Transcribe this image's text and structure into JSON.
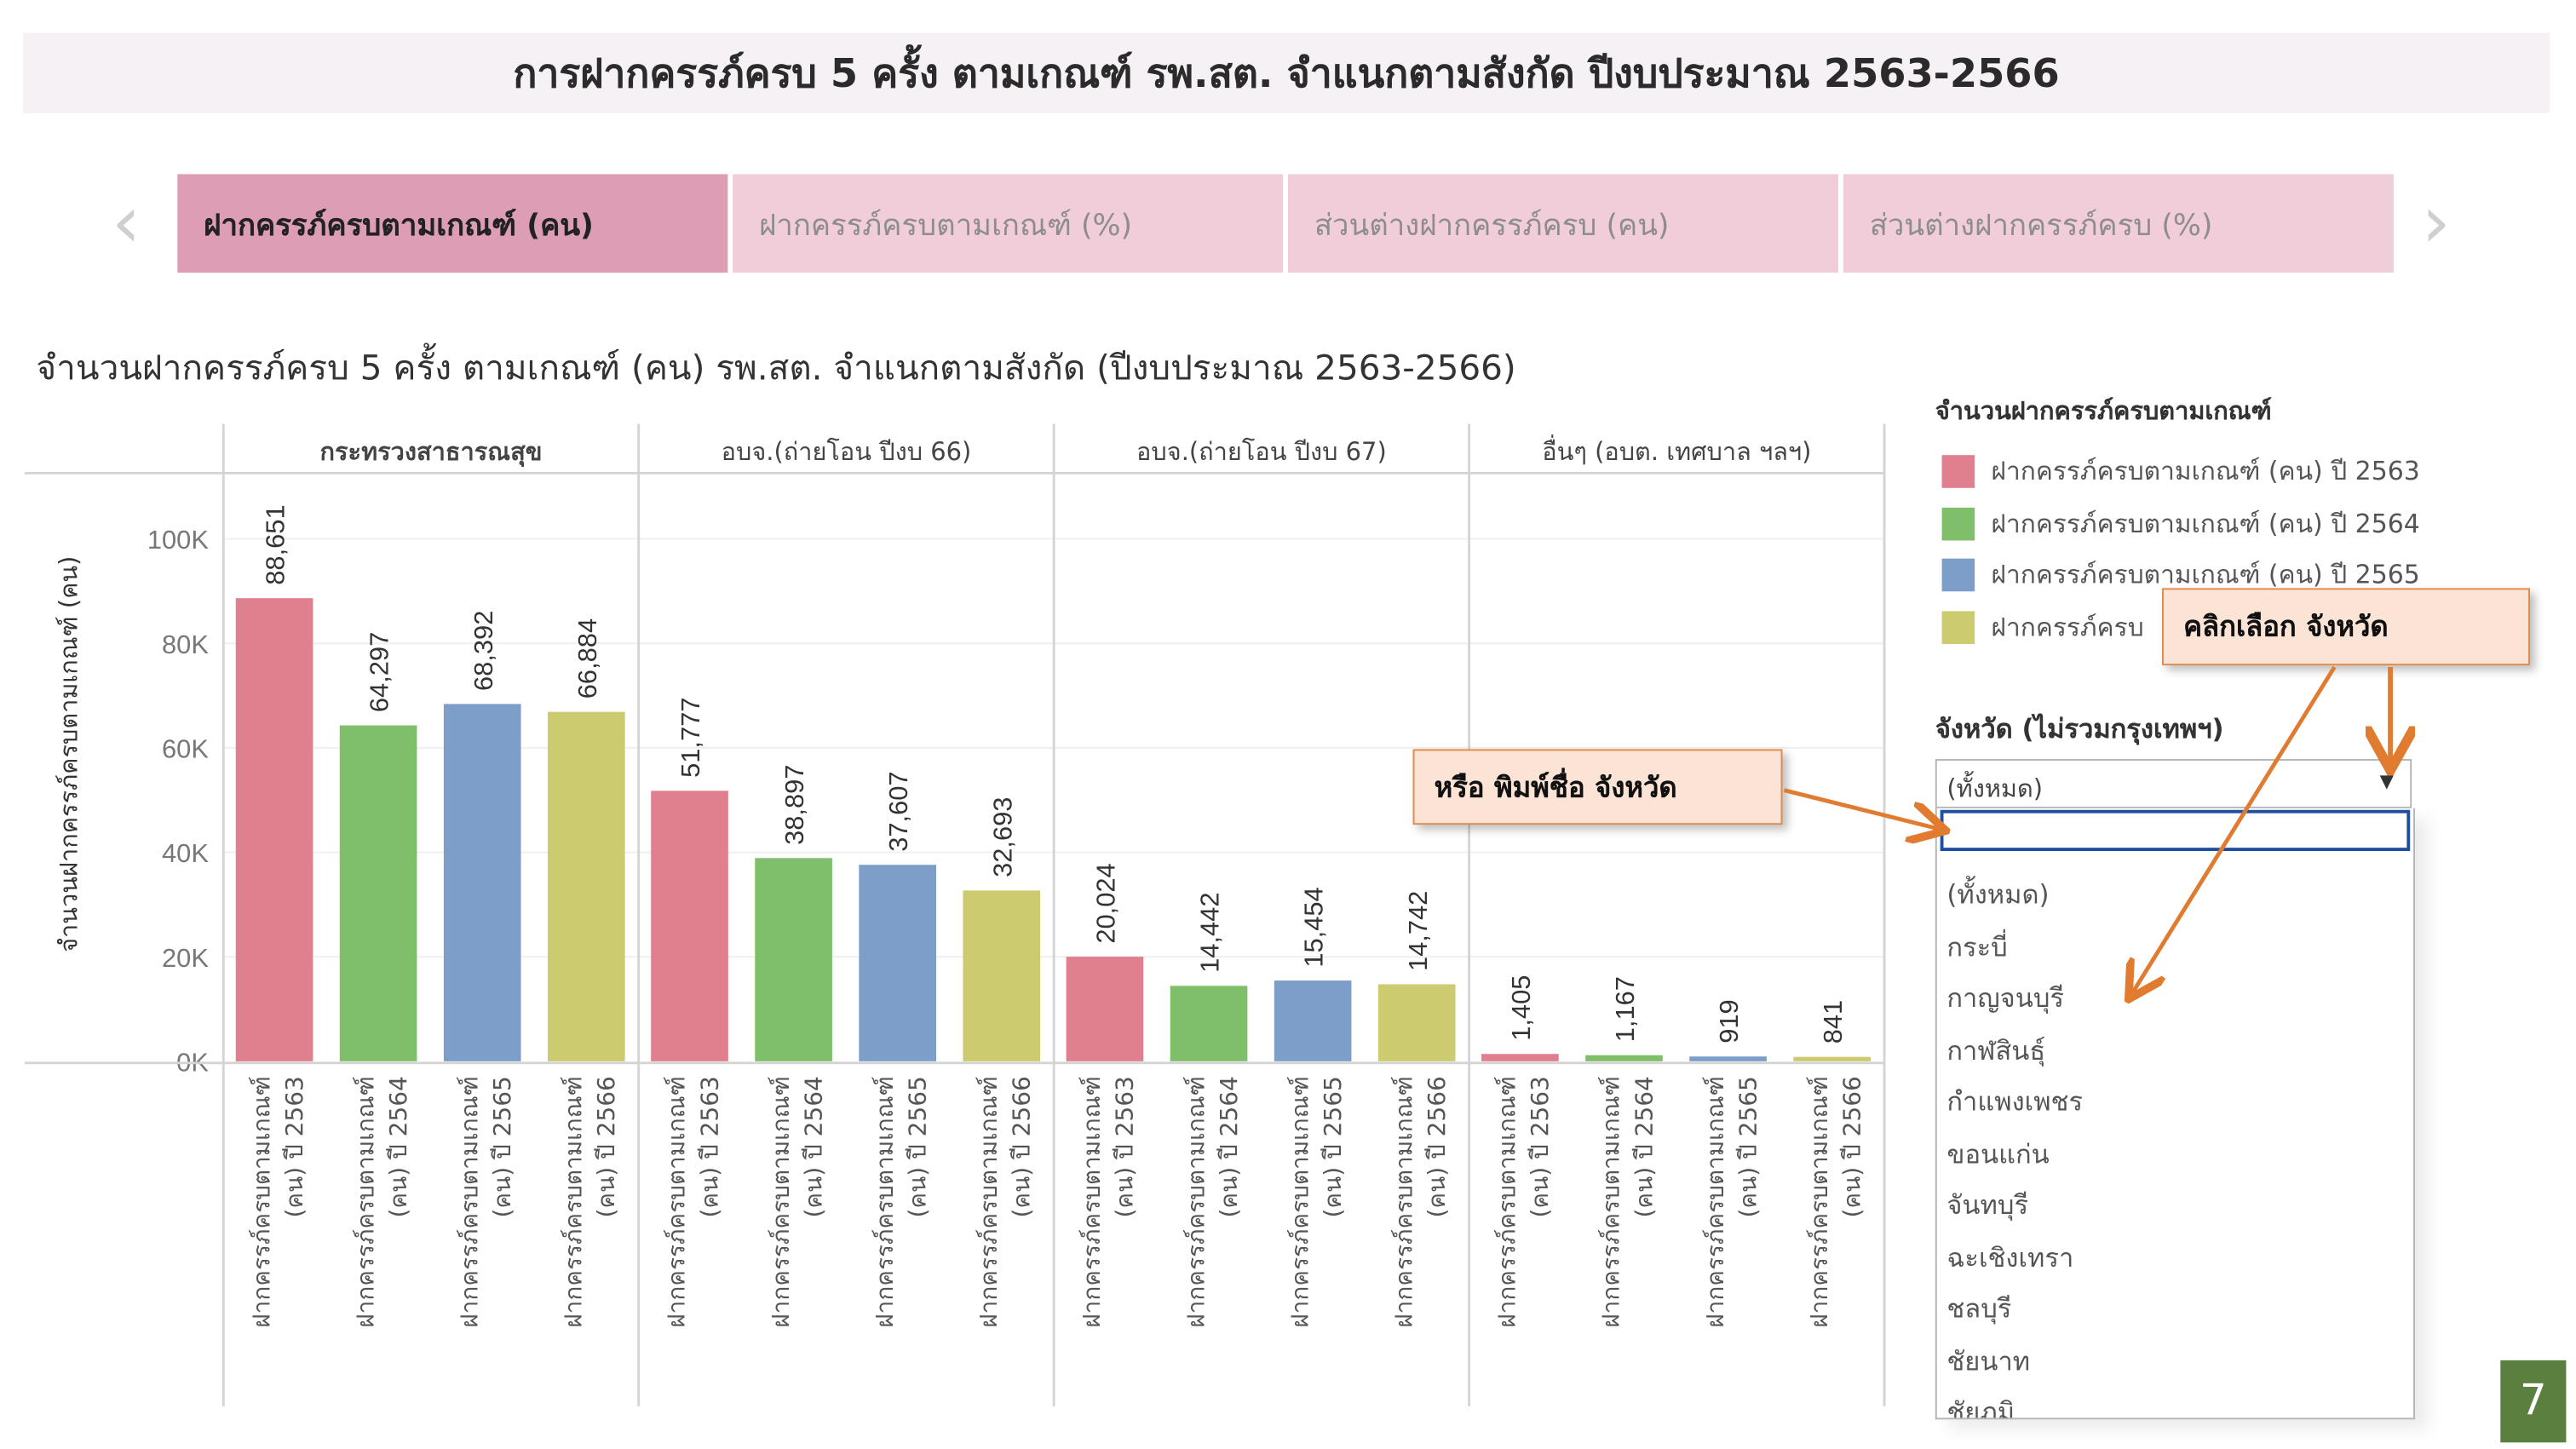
{
  "header": {
    "title": "การฝากครรภ์ครบ 5 ครั้ง ตามเกณฑ์ รพ.สต. จำแนกตามสังกัด ปีงบประมาณ 2563-2566"
  },
  "tabs": [
    {
      "label": "ฝากครรภ์ครบตามเกณฑ์ (คน)",
      "active": true
    },
    {
      "label": "ฝากครรภ์ครบตามเกณฑ์ (%)",
      "active": false
    },
    {
      "label": "ส่วนต่างฝากครรภ์ครบ (คน)",
      "active": false
    },
    {
      "label": "ส่วนต่างฝากครรภ์ครบ (%)",
      "active": false
    }
  ],
  "nav": {
    "prev": "‹",
    "next": "›"
  },
  "subtitle": "จำนวนฝากครรภ์ครบ 5 ครั้ง ตามเกณฑ์ (คน) รพ.สต. จำแนกตามสังกัด (ปีงบประมาณ 2563-2566)",
  "chart_data": {
    "type": "bar",
    "title": "จำนวนฝากครรภ์ครบ 5 ครั้ง ตามเกณฑ์ (คน) รพ.สต. จำแนกตามสังกัด (ปีงบประมาณ 2563-2566)",
    "ylabel": "จำนวนฝากครรภ์ครบตามเกณฑ์ (คน)",
    "ylim": [
      0,
      110000
    ],
    "yticks": [
      0,
      20000,
      40000,
      60000,
      80000,
      100000
    ],
    "ytick_labels": [
      "0K",
      "20K",
      "40K",
      "60K",
      "80K",
      "100K"
    ],
    "grid": true,
    "panels": [
      "กระทรวงสาธารณสุข",
      "อบจ.(ถ่ายโอน ปีงบ 66)",
      "อบจ.(ถ่ายโอน ปีงบ 67)",
      "อื่นๆ (อบต. เทศบาล ฯลฯ)"
    ],
    "category_line1": "ฝากครรภ์ครบตามเกณฑ์",
    "categories": [
      "(คน) ปี 2563",
      "(คน) ปี 2564",
      "(คน) ปี 2565",
      "(คน) ปี 2566"
    ],
    "series": [
      {
        "name": "ฝากครรภ์ครบตามเกณฑ์ (คน) ปี 2563",
        "color": "#e07f8d",
        "values": [
          88651,
          51777,
          20024,
          1405
        ]
      },
      {
        "name": "ฝากครรภ์ครบตามเกณฑ์ (คน) ปี 2564",
        "color": "#80bf6a",
        "values": [
          64297,
          38897,
          14442,
          1167
        ]
      },
      {
        "name": "ฝากครรภ์ครบตามเกณฑ์ (คน) ปี 2565",
        "color": "#7c9ec9",
        "values": [
          68392,
          37607,
          15454,
          919
        ]
      },
      {
        "name": "ฝากครรภ์ครบตามเกณฑ์ (คน) ปี 2566",
        "color": "#cdcb6f",
        "values": [
          66884,
          32693,
          14742,
          841
        ]
      }
    ]
  },
  "legend": {
    "title": "จำนวนฝากครรภ์ครบตามเกณฑ์",
    "items": [
      {
        "label": "ฝากครรภ์ครบตามเกณฑ์ (คน) ปี 2563",
        "color": "#e07f8d"
      },
      {
        "label": "ฝากครรภ์ครบตามเกณฑ์ (คน) ปี 2564",
        "color": "#80bf6a"
      },
      {
        "label": "ฝากครรภ์ครบตามเกณฑ์ (คน) ปี 2565",
        "color": "#7c9ec9"
      },
      {
        "label": "ฝากครรภ์ครบ",
        "color": "#cdcb6f"
      }
    ]
  },
  "filter": {
    "label": "จังหวัด (ไม่รวมกรุงเทพฯ)",
    "selected": "(ทั้งหมด)",
    "search_value": "",
    "options": [
      "(ทั้งหมด)",
      "กระบี่",
      "กาญจนบุรี",
      "กาฬสินธุ์",
      "กำแพงเพชร",
      "ขอนแก่น",
      "จันทบุรี",
      "ฉะเชิงเทรา",
      "ชลบุรี",
      "ชัยนาท",
      "ชัยภูมิ"
    ]
  },
  "callouts": {
    "click_select": "คลิกเลือก จังหวัด",
    "or_type": "หรือ พิมพ์ชื่อ จังหวัด"
  },
  "page_number": "7",
  "colors": {
    "accent_arrow": "#e07b30",
    "tab_active": "#dc9db5",
    "tab_inactive": "#f0cdd9"
  }
}
